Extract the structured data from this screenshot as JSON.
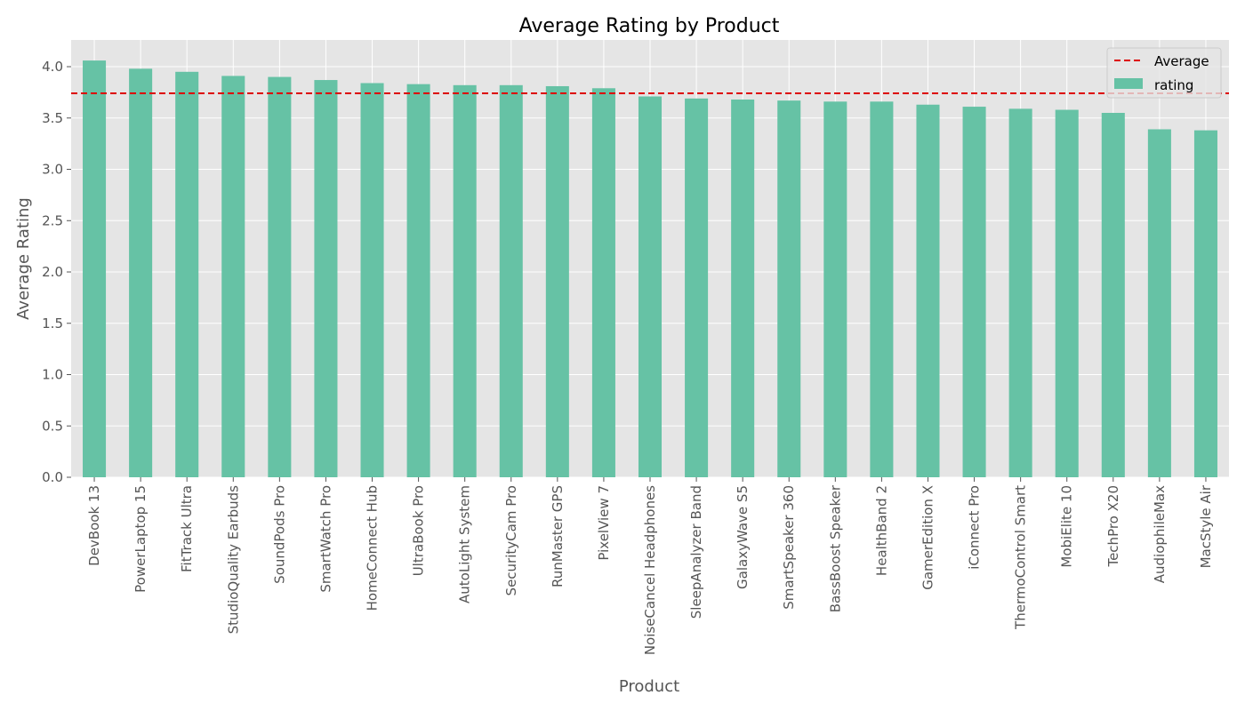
{
  "chart_data": {
    "type": "bar",
    "title": "Average Rating by Product",
    "xlabel": "Product",
    "ylabel": "Average Rating",
    "categories": [
      "DevBook 13",
      "PowerLaptop 15",
      "FitTrack Ultra",
      "StudioQuality Earbuds",
      "SoundPods Pro",
      "SmartWatch Pro",
      "HomeConnect Hub",
      "UltraBook Pro",
      "AutoLight System",
      "SecurityCam Pro",
      "RunMaster GPS",
      "PixelView 7",
      "NoiseCancel Headphones",
      "SleepAnalyzer Band",
      "GalaxyWave S5",
      "SmartSpeaker 360",
      "BassBoost Speaker",
      "HealthBand 2",
      "GamerEdition X",
      "iConnect Pro",
      "ThermoControl Smart",
      "MobiElite 10",
      "TechPro X20",
      "AudiophileMax",
      "MacStyle Air"
    ],
    "series": [
      {
        "name": "rating",
        "values": [
          4.06,
          3.98,
          3.95,
          3.91,
          3.9,
          3.87,
          3.84,
          3.83,
          3.82,
          3.82,
          3.81,
          3.79,
          3.71,
          3.69,
          3.68,
          3.67,
          3.66,
          3.66,
          3.63,
          3.61,
          3.59,
          3.58,
          3.55,
          3.39,
          3.38
        ]
      }
    ],
    "average": 3.74,
    "average_label": "Average",
    "ylim": [
      0,
      4.26
    ],
    "yticks": [
      "0.0",
      "0.5",
      "1.0",
      "1.5",
      "2.0",
      "2.5",
      "3.0",
      "3.5",
      "4.0"
    ],
    "grid": true,
    "legend_position": "top-right",
    "colors": {
      "bar": "#66c2a5",
      "average_line": "#dd0000",
      "plot_bg": "#e5e5e5",
      "grid": "#ffffff"
    }
  }
}
